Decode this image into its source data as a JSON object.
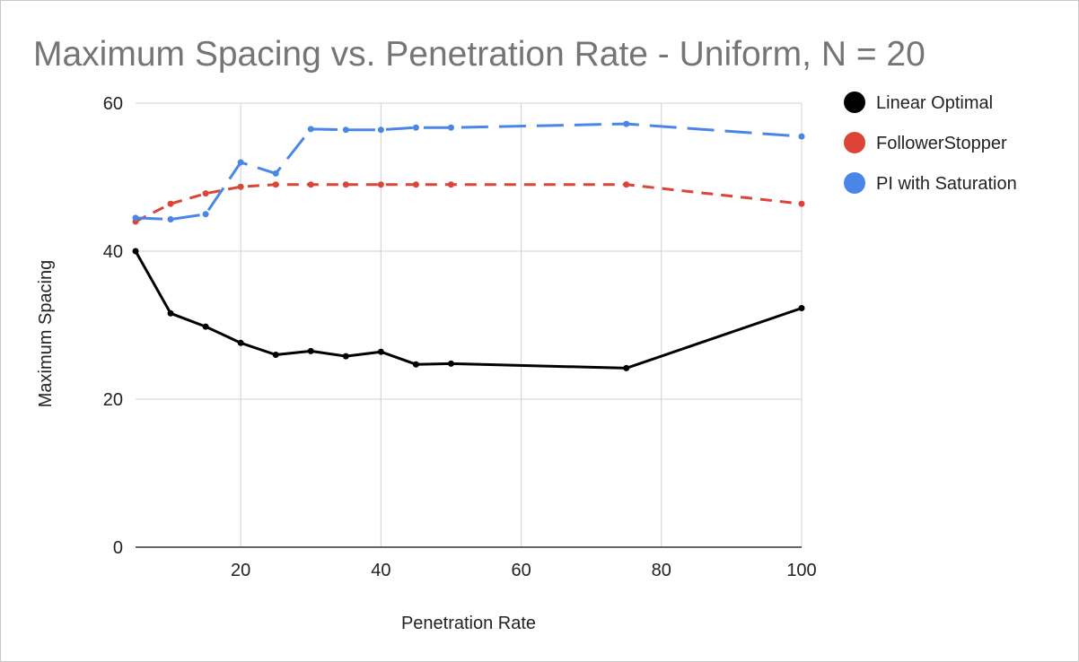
{
  "chart_data": {
    "type": "line",
    "title": "Maximum Spacing vs. Penetration Rate - Uniform, N = 20",
    "xlabel": "Penetration Rate",
    "ylabel": "Maximum Spacing",
    "xlim": [
      5,
      100
    ],
    "ylim": [
      0,
      60
    ],
    "xticks": [
      20,
      40,
      60,
      80,
      100
    ],
    "yticks": [
      0,
      20,
      40,
      60
    ],
    "grid": true,
    "legend_position": "right",
    "series": [
      {
        "name": "Linear Optimal",
        "color": "#000000",
        "dash": "solid",
        "x": [
          5,
          10,
          15,
          20,
          25,
          30,
          35,
          40,
          45,
          50,
          75,
          100
        ],
        "y": [
          40.0,
          31.6,
          29.8,
          27.6,
          26.0,
          26.5,
          25.8,
          26.4,
          24.7,
          24.8,
          24.2,
          32.3
        ]
      },
      {
        "name": "FollowerStopper",
        "color": "#db4437",
        "dash": "short-dash",
        "x": [
          5,
          10,
          15,
          20,
          25,
          30,
          35,
          40,
          45,
          50,
          75,
          100
        ],
        "y": [
          44.0,
          46.4,
          47.8,
          48.7,
          49.0,
          49.0,
          49.0,
          49.0,
          49.0,
          49.0,
          49.0,
          46.4
        ]
      },
      {
        "name": "PI with Saturation",
        "color": "#4a86e8",
        "dash": "long-dash",
        "x": [
          5,
          10,
          15,
          20,
          25,
          30,
          35,
          40,
          45,
          50,
          75,
          100
        ],
        "y": [
          44.5,
          44.3,
          45.0,
          52.0,
          50.5,
          56.5,
          56.4,
          56.4,
          56.7,
          56.7,
          57.2,
          55.5
        ]
      }
    ]
  }
}
